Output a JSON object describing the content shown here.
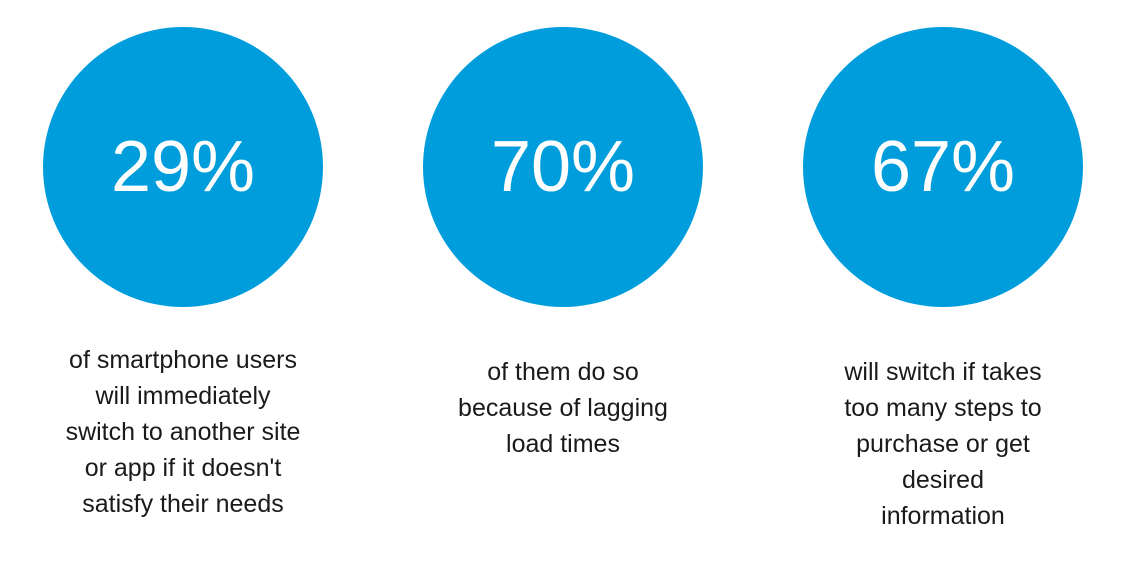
{
  "stats": [
    {
      "value": "29%",
      "lines": [
        "of smartphone users",
        "will immediately",
        "switch to another site",
        "or app if it doesn't",
        "satisfy their needs"
      ]
    },
    {
      "value": "70%",
      "lines": [
        "of them do so",
        "because of lagging",
        "load times"
      ]
    },
    {
      "value": "67%",
      "lines": [
        "will switch if takes",
        "too many steps to",
        "purchase or get",
        "desired",
        "information"
      ]
    }
  ]
}
